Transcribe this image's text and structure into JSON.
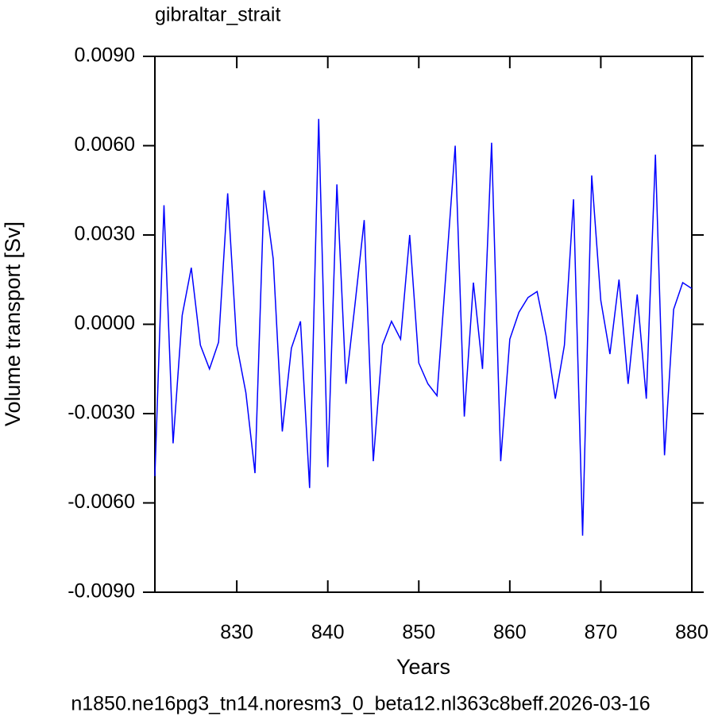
{
  "chart_data": {
    "type": "line",
    "title": "gibraltar_strait",
    "x_label": "Years",
    "y_label": "Volume transport [Sv]",
    "footer": "n1850.ne16pg3_tn14.noresm3_0_beta12.nl363c8beff.2026-03-16",
    "x": [
      821,
      822,
      823,
      824,
      825,
      826,
      827,
      828,
      829,
      830,
      831,
      832,
      833,
      834,
      835,
      836,
      837,
      838,
      839,
      840,
      841,
      842,
      843,
      844,
      845,
      846,
      847,
      848,
      849,
      850,
      851,
      852,
      853,
      854,
      855,
      856,
      857,
      858,
      859,
      860,
      861,
      862,
      863,
      864,
      865,
      866,
      867,
      868,
      869,
      870,
      871,
      872,
      873,
      874,
      875,
      876,
      877,
      878,
      879,
      880
    ],
    "series": [
      {
        "name": "gibraltar_strait",
        "color": "#0000ff",
        "values": [
          -0.0051,
          0.004,
          -0.004,
          0.0003,
          0.0019,
          -0.0007,
          -0.0015,
          -0.0006,
          0.0044,
          -0.0007,
          -0.0023,
          -0.005,
          0.0045,
          0.0022,
          -0.0036,
          -0.0008,
          0.0001,
          -0.0055,
          0.0069,
          -0.0048,
          0.0047,
          -0.002,
          0.0007,
          0.0035,
          -0.0046,
          -0.0007,
          0.0001,
          -0.0005,
          0.003,
          -0.0013,
          -0.002,
          -0.0024,
          0.0018,
          0.006,
          -0.0031,
          0.0014,
          -0.0015,
          0.0061,
          -0.0046,
          -0.0005,
          0.0004,
          0.0009,
          0.0011,
          -0.0004,
          -0.0025,
          -0.0007,
          0.0042,
          -0.0071,
          0.005,
          0.0008,
          -0.001,
          0.0015,
          -0.002,
          0.001,
          -0.0025,
          0.0057,
          -0.0044,
          0.0005,
          0.0014,
          0.0012
        ]
      }
    ],
    "xlim": [
      821,
      880
    ],
    "xticks": [
      830,
      840,
      850,
      860,
      870,
      880
    ],
    "ylim": [
      -0.009,
      0.009
    ],
    "yticks": [
      {
        "value": -0.009,
        "label": "-0.0090"
      },
      {
        "value": -0.006,
        "label": "-0.0060"
      },
      {
        "value": -0.003,
        "label": "-0.0030"
      },
      {
        "value": 0,
        "label": "0.0000"
      },
      {
        "value": 0.003,
        "label": "0.0030"
      },
      {
        "value": 0.006,
        "label": "0.0060"
      },
      {
        "value": 0.009,
        "label": "0.0090"
      }
    ],
    "footer_color": "#0000ff"
  }
}
